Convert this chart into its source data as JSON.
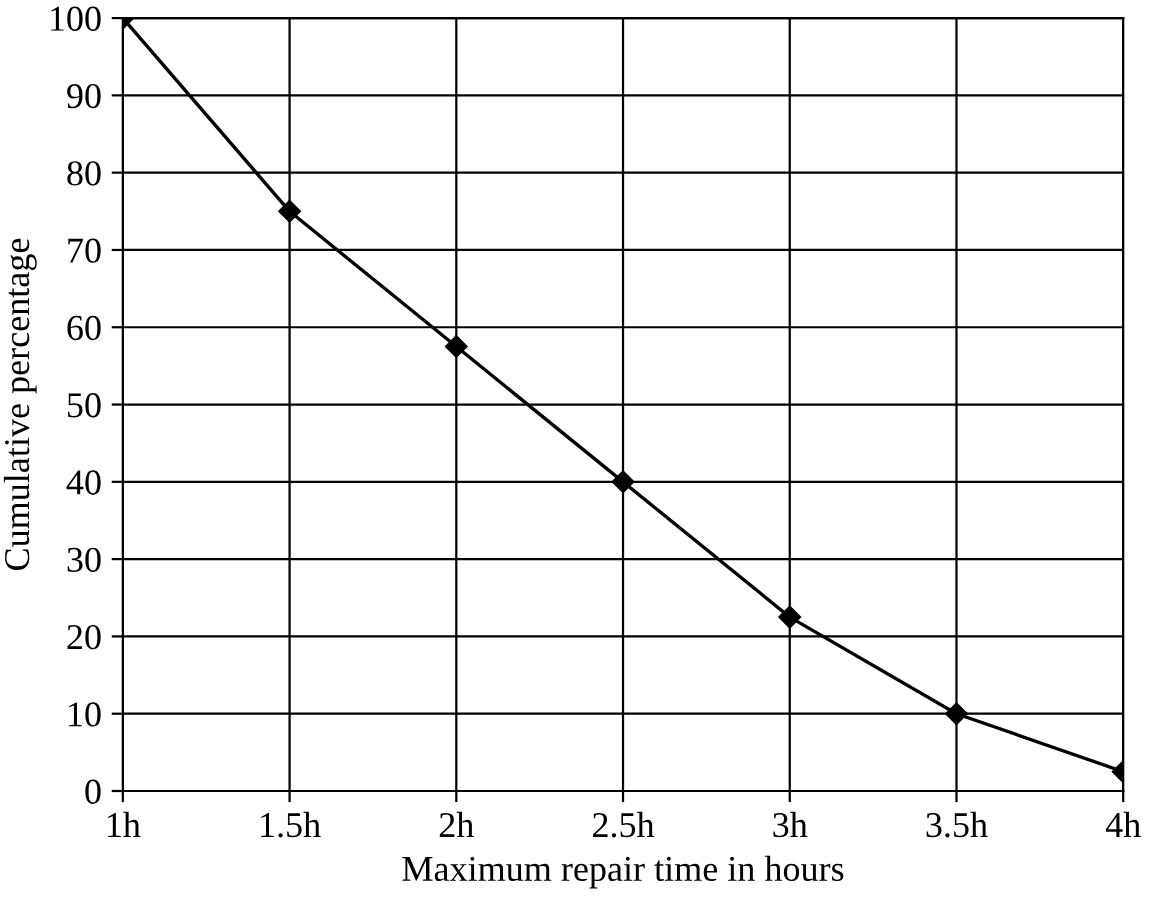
{
  "chart_data": {
    "type": "line",
    "xlabel": "Maximum repair time in hours",
    "ylabel": "Cumulative percentage",
    "x": [
      1,
      1.5,
      2,
      2.5,
      3,
      3.5,
      4
    ],
    "series": [
      {
        "color": "#000000",
        "values": [
          100,
          75,
          57.5,
          40,
          22.5,
          10,
          2.5
        ]
      }
    ],
    "xlim": [
      1,
      4
    ],
    "ylim": [
      0,
      100
    ],
    "xticks": [
      {
        "value": 1,
        "label": "1h"
      },
      {
        "value": 1.5,
        "label": "1.5h"
      },
      {
        "value": 2,
        "label": "2h"
      },
      {
        "value": 2.5,
        "label": "2.5h"
      },
      {
        "value": 3,
        "label": "3h"
      },
      {
        "value": 3.5,
        "label": "3.5h"
      },
      {
        "value": 4,
        "label": "4h"
      }
    ],
    "yticks": [
      0,
      10,
      20,
      30,
      40,
      50,
      60,
      70,
      80,
      90,
      100
    ],
    "grid": true,
    "marker": "diamond",
    "line_style": "solid"
  }
}
